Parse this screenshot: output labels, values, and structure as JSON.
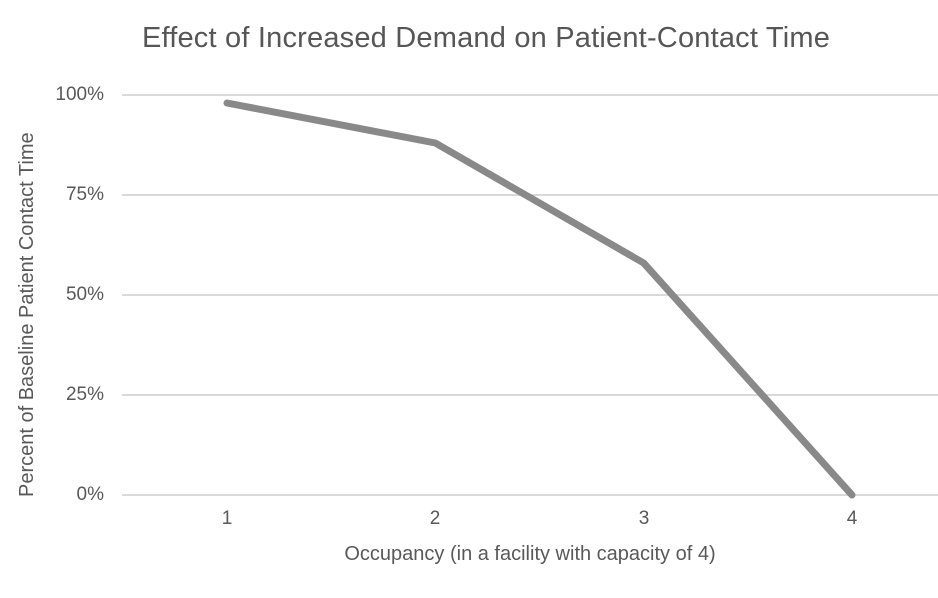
{
  "chart_data": {
    "type": "line",
    "title": "Effect of Increased Demand on Patient-Contact Time",
    "xlabel": "Occupancy (in a facility with capacity of 4)",
    "ylabel": "Percent of Baseline Patient Contact Time",
    "categories": [
      "1",
      "2",
      "3",
      "4"
    ],
    "x": [
      1,
      2,
      3,
      4
    ],
    "values": [
      98,
      88,
      58,
      0
    ],
    "ylim": [
      0,
      100
    ],
    "ytick_values": [
      100,
      75,
      50,
      25,
      0
    ],
    "ytick_labels": [
      "100%",
      "75%",
      "50%",
      "25%",
      "0%"
    ],
    "grid": "horizontal-only",
    "legend": "none",
    "line_width": 7,
    "colors": {
      "line": "#898989",
      "gridline": "#d9d9d9",
      "text": "#595959",
      "title": "#565656",
      "background": "#ffffff"
    }
  }
}
